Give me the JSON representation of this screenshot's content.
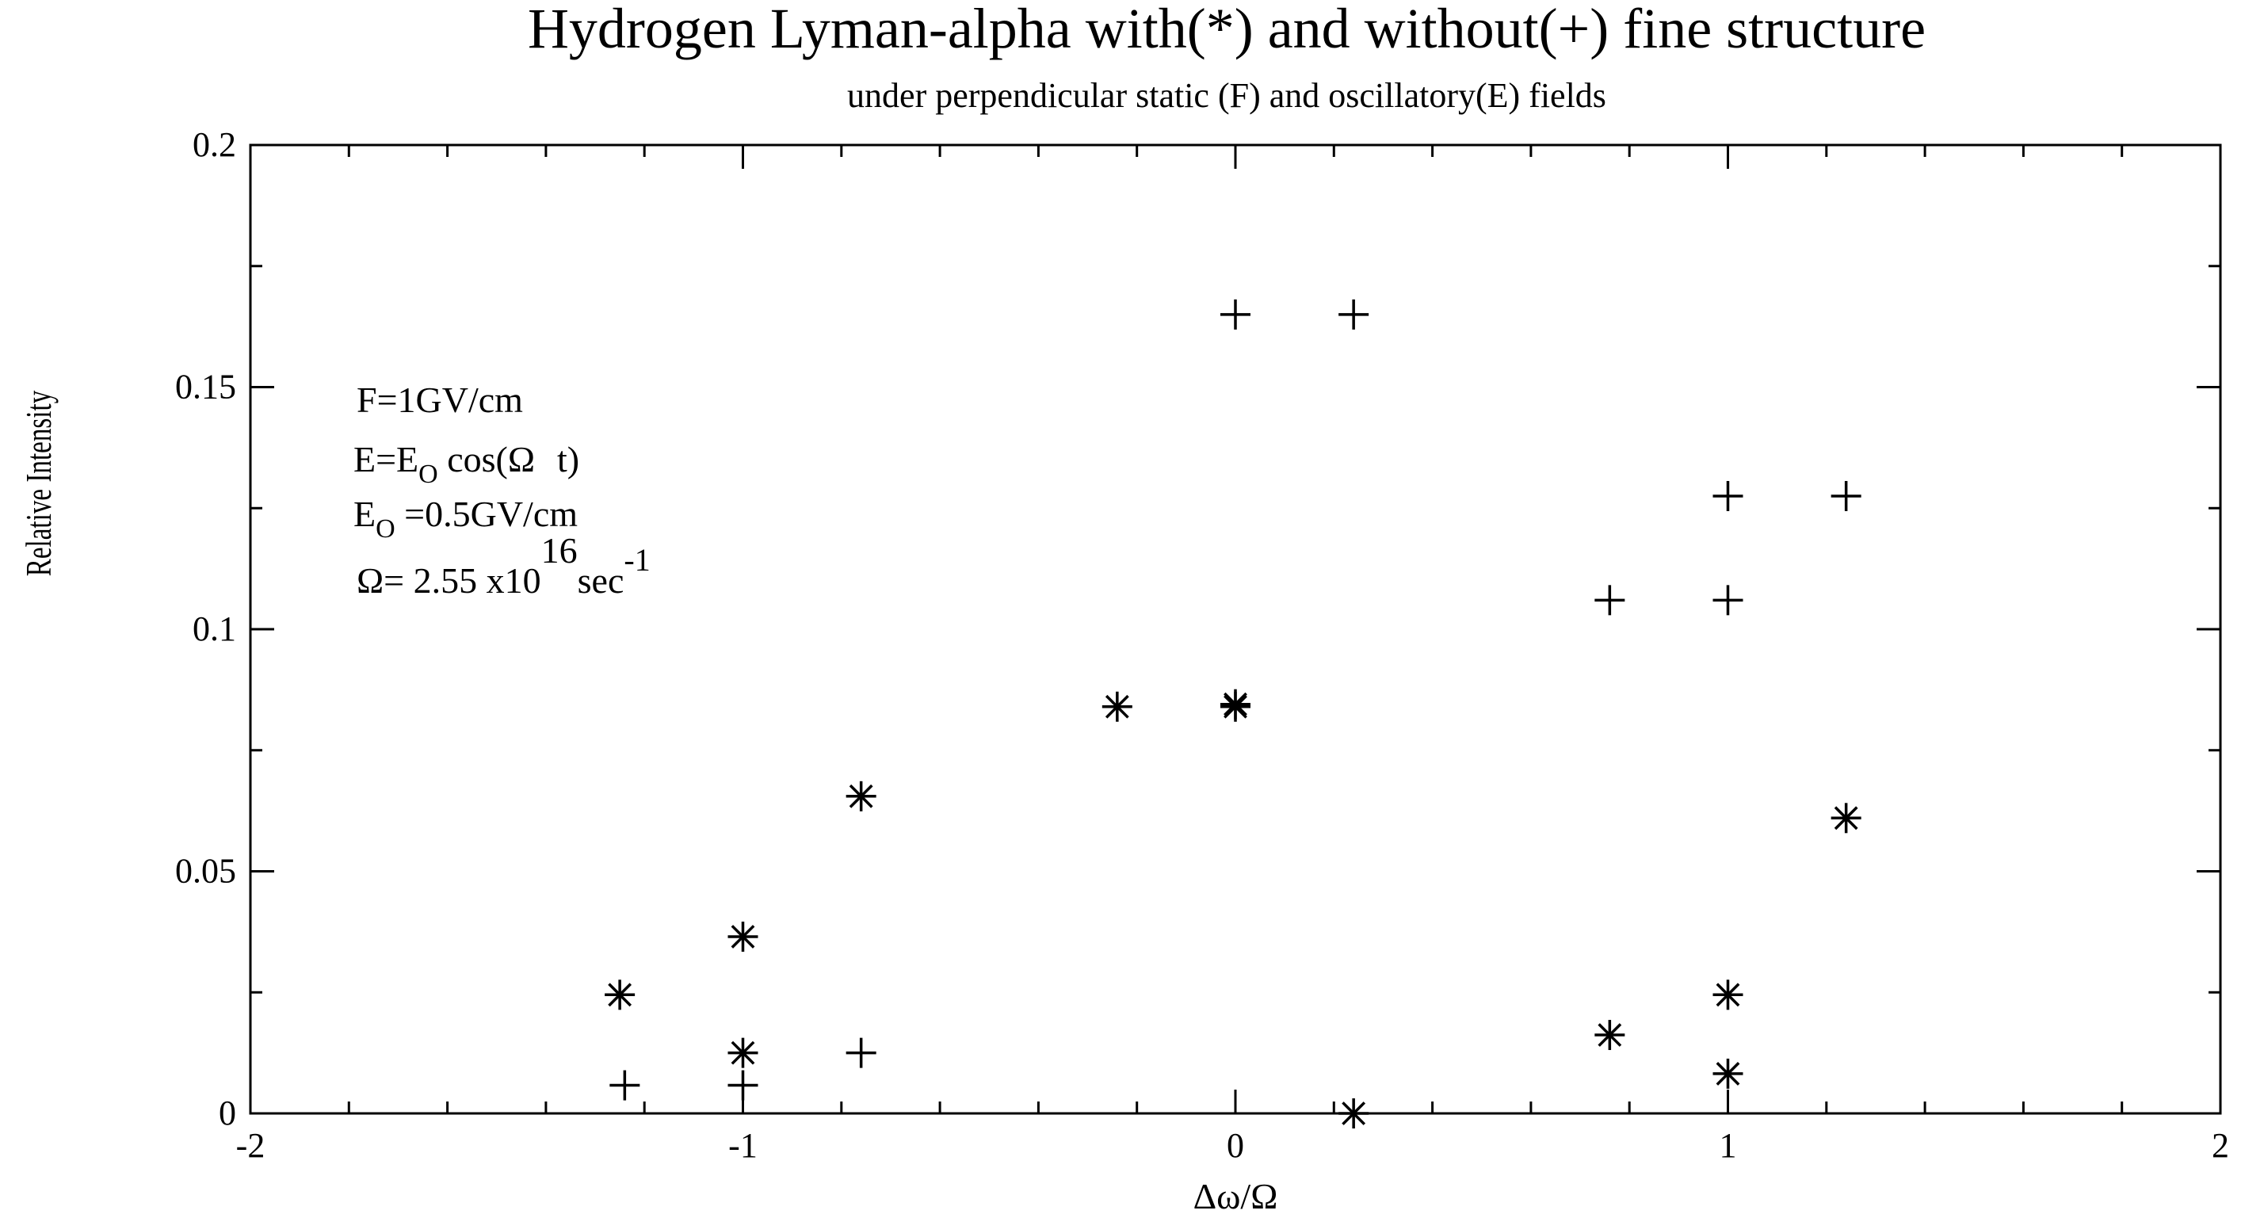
{
  "chart_data": {
    "type": "scatter",
    "title": "Hydrogen Lyman-alpha with(*) and without(+) fine structure",
    "subtitle": "under perpendicular static (F) and oscillatory(E) fields",
    "xlabel": "Δω/Ω",
    "ylabel": "Relative Intensity",
    "xlim": [
      -2,
      2
    ],
    "ylim": [
      0,
      0.2
    ],
    "xticks": [
      -2,
      -1,
      0,
      1,
      2
    ],
    "xtick_labels": [
      "-2",
      "-1",
      "0",
      "1",
      "2"
    ],
    "yticks": [
      0,
      0.05,
      0.1,
      0.15,
      0.2
    ],
    "ytick_labels": [
      "0",
      "0.05",
      "0.1",
      "0.15",
      "0.2"
    ],
    "grid": false,
    "legend": "none",
    "annotations": {
      "line1": "F=1GV/cm",
      "line2_a": "E=E",
      "line2_sub": "O",
      "line2_b": " cos(",
      "line2_omega": "Ω",
      "line2_t": "t)",
      "line3_a": "E",
      "line3_sub": "O",
      "line3_b": " =0.5GV/cm",
      "line4_a": "Ω= 2.55 x10",
      "line4_sup": "16",
      "line4_b": "sec",
      "line4_sup2": "-1"
    },
    "series": [
      {
        "name": "with fine structure (*)",
        "marker": "asterisk",
        "points": [
          [
            -1.25,
            0.0245
          ],
          [
            -1.0,
            0.0365
          ],
          [
            -1.0,
            0.0125
          ],
          [
            -0.76,
            0.0655
          ],
          [
            -0.24,
            0.084
          ],
          [
            0.0,
            0.084
          ],
          [
            0.0,
            0.0845
          ],
          [
            0.24,
            0.0
          ],
          [
            0.76,
            0.0162
          ],
          [
            1.0,
            0.0245
          ],
          [
            1.0,
            0.0082
          ],
          [
            1.24,
            0.061
          ]
        ]
      },
      {
        "name": "without fine structure (+)",
        "marker": "plus",
        "points": [
          [
            -1.24,
            0.0058
          ],
          [
            -1.0,
            0.0058
          ],
          [
            -0.76,
            0.0125
          ],
          [
            0.0,
            0.165
          ],
          [
            0.24,
            0.165
          ],
          [
            0.76,
            0.106
          ],
          [
            1.0,
            0.106
          ],
          [
            1.0,
            0.1275
          ],
          [
            1.24,
            0.1275
          ]
        ]
      }
    ]
  }
}
